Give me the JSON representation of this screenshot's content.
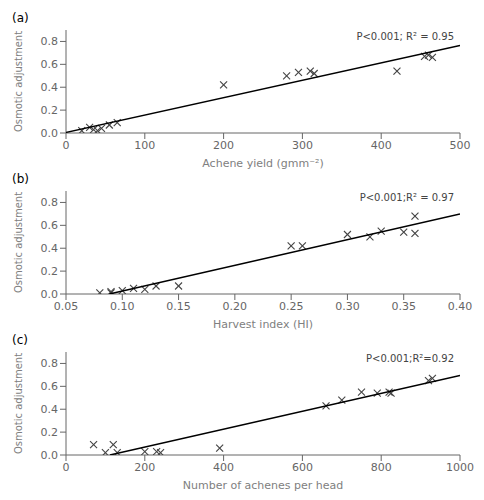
{
  "chart_data": [
    {
      "type": "scatter",
      "title": "(a)",
      "annotation": "P<0.001; R² = 0.95",
      "x_label": "Achene yield (gmm⁻²)",
      "y_label": "Osmotic adjustment",
      "xlim": [
        0,
        500
      ],
      "ylim": [
        0.0,
        0.9
      ],
      "xticks": [
        0,
        100,
        200,
        300,
        400,
        500
      ],
      "yticks": [
        {
          "value": 0.0,
          "label": "0.0"
        },
        0.2,
        0.4,
        0.6,
        0.8
      ],
      "grid": false,
      "series": [
        {
          "type": "scatter",
          "marker": "x",
          "color": "#444444",
          "x": [
            20,
            30,
            35,
            40,
            45,
            55,
            65,
            200,
            280,
            295,
            310,
            315,
            420,
            455,
            460,
            465
          ],
          "values": [
            0.02,
            0.05,
            0.03,
            0.02,
            0.04,
            0.07,
            0.09,
            0.42,
            0.5,
            0.53,
            0.54,
            0.52,
            0.54,
            0.67,
            0.68,
            0.66
          ]
        },
        {
          "type": "line",
          "line_style": "solid",
          "color": "#000000",
          "x": [
            0,
            500
          ],
          "values": [
            0.0051,
            0.7642
          ]
        }
      ]
    },
    {
      "type": "scatter",
      "title": "(b)",
      "annotation": "P<0.001;R² = 0.97",
      "x_label": "Harvest index (HI)",
      "y_label": "Osmotic adjustment",
      "xlim": [
        0.05,
        0.4
      ],
      "ylim": [
        0.0,
        0.9
      ],
      "xticks": [
        0.05,
        {
          "value": 0.1,
          "label": "0.10"
        },
        0.15,
        {
          "value": 0.2,
          "label": "0.20"
        },
        0.25,
        {
          "value": 0.3,
          "label": "0.30"
        },
        0.35,
        {
          "value": 0.4,
          "label": "0.40"
        }
      ],
      "yticks": [
        {
          "value": 0.0,
          "label": "0.0"
        },
        0.2,
        0.4,
        0.6,
        0.8
      ],
      "grid": false,
      "series": [
        {
          "type": "scatter",
          "marker": "x",
          "color": "#444444",
          "x": [
            0.08,
            0.09,
            0.09,
            0.1,
            0.11,
            0.12,
            0.13,
            0.15,
            0.25,
            0.26,
            0.3,
            0.32,
            0.33,
            0.35,
            0.36,
            0.36
          ],
          "values": [
            0.01,
            0.01,
            0.02,
            0.03,
            0.05,
            0.04,
            0.07,
            0.07,
            0.42,
            0.42,
            0.52,
            0.5,
            0.55,
            0.54,
            0.53,
            0.68
          ]
        },
        {
          "type": "line",
          "line_style": "solid",
          "color": "#000000",
          "x": [
            0.0885,
            0.4
          ],
          "values": [
            0.0,
            0.7001
          ]
        }
      ]
    },
    {
      "type": "scatter",
      "title": "(c)",
      "annotation": "P<0.001;R²=0.92",
      "x_label": "Number of achenes per head",
      "y_label": "Osmotic adjustment",
      "xlim": [
        0,
        1000
      ],
      "ylim": [
        0.0,
        0.9
      ],
      "xticks": [
        0,
        200,
        400,
        600,
        800,
        1000
      ],
      "yticks": [
        {
          "value": 0.0,
          "label": "0.0"
        },
        0.2,
        0.4,
        0.6,
        0.8
      ],
      "grid": false,
      "series": [
        {
          "type": "scatter",
          "marker": "x",
          "color": "#444444",
          "x": [
            70,
            100,
            120,
            130,
            200,
            230,
            240,
            390,
            660,
            700,
            750,
            790,
            820,
            825,
            920,
            930
          ],
          "values": [
            0.09,
            0.02,
            0.09,
            0.02,
            0.03,
            0.03,
            0.02,
            0.06,
            0.43,
            0.48,
            0.55,
            0.54,
            0.55,
            0.54,
            0.65,
            0.67
          ]
        },
        {
          "type": "line",
          "line_style": "solid",
          "color": "#000000",
          "x": [
            111.48,
            1000
          ],
          "values": [
            0.0,
            0.6958
          ]
        }
      ]
    }
  ]
}
